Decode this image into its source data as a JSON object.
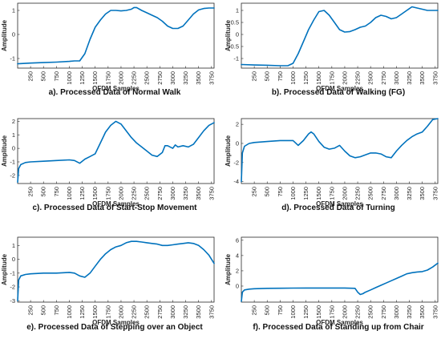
{
  "chart_data": [
    {
      "type": "line",
      "caption": "a). Processed Data of Normal Walk",
      "xlabel": "OFDM Samples",
      "ylabel": "Amplitude",
      "xlim": [
        0,
        3800
      ],
      "ylim": [
        -1.4,
        1.3
      ],
      "xticks": [
        250,
        500,
        750,
        1000,
        1250,
        1500,
        1750,
        2000,
        2250,
        2500,
        2750,
        3000,
        3250,
        3500,
        3750
      ],
      "yticks": [
        -1,
        0,
        1
      ],
      "x": [
        0,
        250,
        500,
        750,
        1000,
        1100,
        1200,
        1300,
        1400,
        1500,
        1600,
        1700,
        1800,
        1900,
        2000,
        2100,
        2200,
        2250,
        2300,
        2400,
        2500,
        2600,
        2700,
        2800,
        2900,
        3000,
        3100,
        3200,
        3300,
        3400,
        3500,
        3600,
        3700,
        3800
      ],
      "y": [
        -1.22,
        -1.19,
        -1.17,
        -1.15,
        -1.12,
        -1.1,
        -1.1,
        -0.8,
        -0.2,
        0.3,
        0.6,
        0.85,
        1.0,
        1.0,
        0.98,
        1.0,
        1.05,
        1.12,
        1.12,
        1.0,
        0.9,
        0.8,
        0.7,
        0.55,
        0.35,
        0.25,
        0.25,
        0.35,
        0.6,
        0.85,
        1.02,
        1.08,
        1.1,
        1.1
      ]
    },
    {
      "type": "line",
      "caption": "b). Processed Data of Walking (FG)",
      "xlabel": "OFDM Samples",
      "ylabel": "Amplitude",
      "xlim": [
        0,
        3800
      ],
      "ylim": [
        -1.4,
        1.3
      ],
      "xticks": [
        250,
        500,
        750,
        1000,
        1250,
        1500,
        1750,
        2000,
        2250,
        2500,
        2750,
        3000,
        3250,
        3500,
        3750
      ],
      "yticks": [
        -1,
        -0.5,
        0,
        0.5,
        1
      ],
      "x": [
        0,
        250,
        500,
        750,
        900,
        1000,
        1100,
        1200,
        1300,
        1400,
        1500,
        1600,
        1700,
        1800,
        1900,
        2000,
        2100,
        2200,
        2300,
        2400,
        2500,
        2600,
        2700,
        2800,
        2900,
        3000,
        3100,
        3200,
        3300,
        3400,
        3500,
        3600,
        3700,
        3800
      ],
      "y": [
        -1.25,
        -1.27,
        -1.28,
        -1.3,
        -1.3,
        -1.2,
        -0.8,
        -0.3,
        0.2,
        0.6,
        0.95,
        1.0,
        0.8,
        0.5,
        0.2,
        0.1,
        0.12,
        0.2,
        0.3,
        0.35,
        0.5,
        0.7,
        0.8,
        0.75,
        0.65,
        0.7,
        0.85,
        1.0,
        1.15,
        1.1,
        1.05,
        1.0,
        1.0,
        1.0
      ]
    },
    {
      "type": "line",
      "caption": "c). Processed Data of Start-Stop Movement",
      "xlabel": "OFDM Samples",
      "ylabel": "Amplitude",
      "xlim": [
        0,
        3800
      ],
      "ylim": [
        -2.6,
        2.2
      ],
      "xticks": [
        250,
        500,
        750,
        1000,
        1250,
        1500,
        1750,
        2000,
        2250,
        2500,
        2750,
        3000,
        3250,
        3500,
        3750
      ],
      "yticks": [
        -2,
        -1,
        0,
        1,
        2
      ],
      "x": [
        0,
        20,
        60,
        150,
        250,
        500,
        750,
        1000,
        1100,
        1200,
        1300,
        1400,
        1500,
        1600,
        1700,
        1800,
        1900,
        2000,
        2100,
        2200,
        2300,
        2400,
        2500,
        2600,
        2700,
        2800,
        2850,
        2900,
        3000,
        3050,
        3100,
        3200,
        3300,
        3400,
        3500,
        3600,
        3700,
        3800
      ],
      "y": [
        -2.5,
        -1.5,
        -1.2,
        -1.05,
        -1.0,
        -0.95,
        -0.9,
        -0.85,
        -0.9,
        -1.1,
        -0.8,
        -0.6,
        -0.4,
        0.4,
        1.2,
        1.7,
        2.0,
        1.8,
        1.3,
        0.8,
        0.4,
        0.1,
        -0.2,
        -0.5,
        -0.6,
        -0.3,
        0.2,
        0.2,
        0.0,
        0.25,
        0.1,
        0.2,
        0.1,
        0.3,
        0.8,
        1.3,
        1.7,
        1.9
      ]
    },
    {
      "type": "line",
      "caption": "d). Processed Data of Turning",
      "xlabel": "OFDM Samples",
      "ylabel": "Amplitude",
      "xlim": [
        0,
        3800
      ],
      "ylim": [
        -4.2,
        2.6
      ],
      "xticks": [
        250,
        500,
        750,
        1000,
        1250,
        1500,
        1750,
        2000,
        2250,
        2500,
        2750,
        3000,
        3250,
        3500,
        3750
      ],
      "yticks": [
        -4,
        -2,
        0,
        2
      ],
      "x": [
        0,
        20,
        60,
        150,
        250,
        500,
        750,
        1000,
        1100,
        1200,
        1300,
        1350,
        1400,
        1500,
        1600,
        1700,
        1800,
        1900,
        2000,
        2100,
        2200,
        2300,
        2400,
        2500,
        2600,
        2700,
        2800,
        2900,
        3000,
        3100,
        3200,
        3300,
        3400,
        3500,
        3600,
        3700,
        3800
      ],
      "y": [
        -4.0,
        -1.0,
        -0.3,
        0.0,
        0.1,
        0.2,
        0.3,
        0.3,
        -0.2,
        0.3,
        1.0,
        1.2,
        1.0,
        0.2,
        -0.4,
        -0.6,
        -0.5,
        -0.2,
        -0.8,
        -1.3,
        -1.5,
        -1.4,
        -1.2,
        -1.0,
        -1.0,
        -1.1,
        -1.4,
        -1.5,
        -0.8,
        -0.2,
        0.3,
        0.7,
        1.0,
        1.2,
        1.8,
        2.5,
        2.6
      ]
    },
    {
      "type": "line",
      "caption": "e). Processed Data of Stepping over an Object",
      "xlabel": "OFDM Samples",
      "ylabel": "Amplitude",
      "xlim": [
        0,
        3800
      ],
      "ylim": [
        -3.1,
        1.6
      ],
      "xticks": [
        250,
        500,
        750,
        1000,
        1250,
        1500,
        1750,
        2000,
        2250,
        2500,
        2750,
        3000,
        3250,
        3500,
        3750
      ],
      "yticks": [
        -3,
        -2,
        -1,
        0,
        1
      ],
      "x": [
        0,
        20,
        60,
        150,
        250,
        500,
        750,
        1000,
        1100,
        1200,
        1300,
        1400,
        1500,
        1600,
        1700,
        1800,
        1900,
        2000,
        2100,
        2200,
        2300,
        2400,
        2500,
        2600,
        2700,
        2800,
        2900,
        3000,
        3100,
        3200,
        3300,
        3400,
        3500,
        3600,
        3700,
        3800
      ],
      "y": [
        -3.0,
        -1.5,
        -1.2,
        -1.1,
        -1.05,
        -1.0,
        -1.0,
        -0.95,
        -1.0,
        -1.2,
        -1.3,
        -1.0,
        -0.5,
        0.0,
        0.4,
        0.7,
        0.9,
        1.0,
        1.2,
        1.3,
        1.3,
        1.25,
        1.2,
        1.15,
        1.1,
        1.0,
        1.0,
        1.05,
        1.1,
        1.15,
        1.2,
        1.15,
        1.0,
        0.7,
        0.3,
        -0.3
      ]
    },
    {
      "type": "line",
      "caption": "f). Processed Data of Standing up from Chair",
      "xlabel": "OFDM Samples",
      "ylabel": "Amplitude",
      "xlim": [
        0,
        3800
      ],
      "ylim": [
        -2.1,
        6.4
      ],
      "xticks": [
        250,
        500,
        750,
        1000,
        1250,
        1500,
        1750,
        2000,
        2250,
        2500,
        2750,
        3000,
        3250,
        3500,
        3750
      ],
      "yticks": [
        0,
        2,
        4,
        6
      ],
      "x": [
        0,
        20,
        60,
        150,
        250,
        500,
        750,
        1000,
        1250,
        1500,
        1750,
        2000,
        2200,
        2250,
        2300,
        2350,
        2400,
        2500,
        2600,
        2700,
        2800,
        2900,
        3000,
        3100,
        3200,
        3300,
        3400,
        3500,
        3600,
        3700,
        3800
      ],
      "y": [
        -2.0,
        -0.8,
        -0.5,
        -0.4,
        -0.35,
        -0.3,
        -0.28,
        -0.26,
        -0.25,
        -0.25,
        -0.25,
        -0.25,
        -0.3,
        -0.8,
        -1.1,
        -1.0,
        -0.8,
        -0.5,
        -0.2,
        0.1,
        0.4,
        0.7,
        1.0,
        1.3,
        1.6,
        1.75,
        1.85,
        1.9,
        2.1,
        2.5,
        3.0
      ]
    }
  ]
}
